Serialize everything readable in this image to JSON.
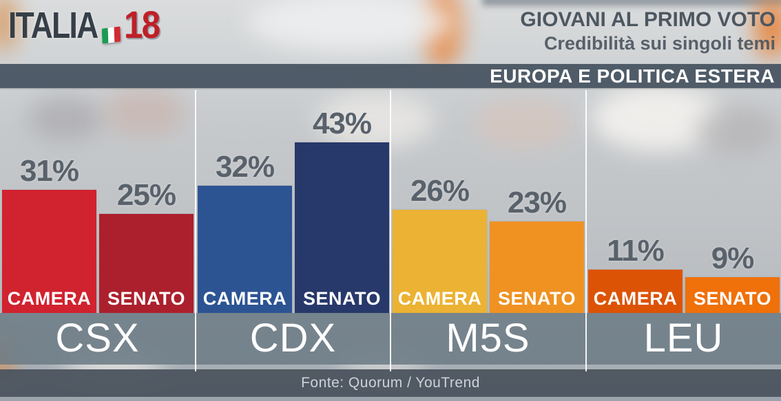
{
  "header": {
    "logo": {
      "italia": "ITALIA",
      "year": "18",
      "year_color": "#bf1f27",
      "flag_colors": [
        "#1d9b53",
        "#ffffff",
        "#d12a33"
      ]
    },
    "title": "GIOVANI AL PRIMO VOTO",
    "subtitle": "Credibilità sui singoli temi",
    "topic_banner": "EUROPA E POLITICA ESTERA"
  },
  "footer": {
    "source": "Fonte: Quorum / YouTrend"
  },
  "colors": {
    "topic_band_bg": "#4a5663",
    "name_band_bg": "#6d7c86",
    "fonte_band_bg": "#4d5560",
    "percent_text": "#59626b",
    "header_text": "#4d5761",
    "divider": "#ffffff"
  },
  "chart_data": {
    "type": "bar",
    "title": "EUROPA E POLITICA ESTERA",
    "subtitle": "Credibilità sui singoli temi — Giovani al primo voto",
    "categories": [
      "CSX",
      "CDX",
      "M5S",
      "LEU"
    ],
    "series_labels": [
      "CAMERA",
      "SENATO"
    ],
    "unit": "%",
    "ylim": [
      0,
      50
    ],
    "grid": false,
    "legend_position": "none",
    "series": [
      {
        "name": "CAMERA",
        "values": [
          31,
          32,
          26,
          11
        ]
      },
      {
        "name": "SENATO",
        "values": [
          25,
          43,
          23,
          9
        ]
      }
    ],
    "groups": [
      {
        "name": "CSX",
        "bars": [
          {
            "label": "CAMERA",
            "value": 31,
            "display": "31%",
            "color": "#d1222f"
          },
          {
            "label": "SENATO",
            "value": 25,
            "display": "25%",
            "color": "#ac202d"
          }
        ]
      },
      {
        "name": "CDX",
        "bars": [
          {
            "label": "CAMERA",
            "value": 32,
            "display": "32%",
            "color": "#2c5493"
          },
          {
            "label": "SENATO",
            "value": 43,
            "display": "43%",
            "color": "#27386a"
          }
        ]
      },
      {
        "name": "M5S",
        "bars": [
          {
            "label": "CAMERA",
            "value": 26,
            "display": "26%",
            "color": "#ecb233"
          },
          {
            "label": "SENATO",
            "value": 23,
            "display": "23%",
            "color": "#ef9222"
          }
        ]
      },
      {
        "name": "LEU",
        "bars": [
          {
            "label": "CAMERA",
            "value": 11,
            "display": "11%",
            "color": "#dd5305"
          },
          {
            "label": "SENATO",
            "value": 9,
            "display": "9%",
            "color": "#f07009"
          }
        ]
      }
    ]
  }
}
